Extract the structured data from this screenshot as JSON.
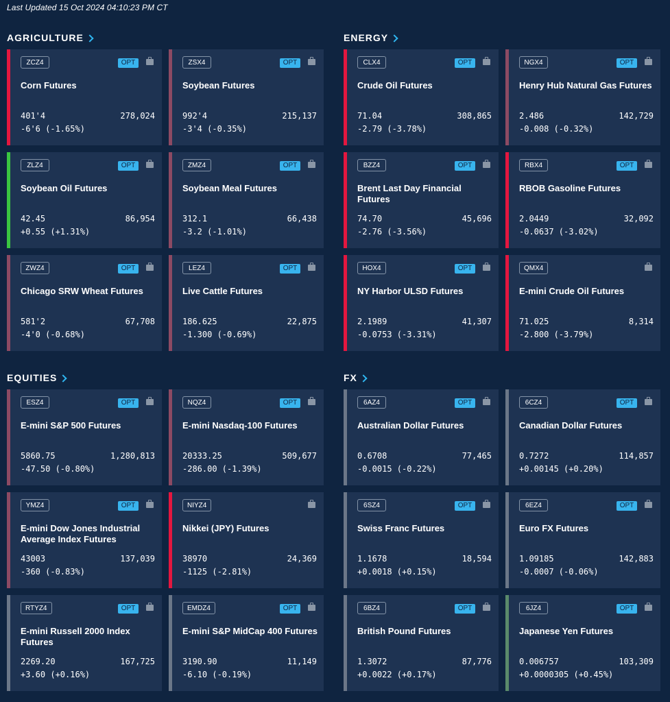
{
  "last_updated": "Last Updated 15 Oct 2024 04:10:23 PM CT",
  "opt_label": "OPT",
  "colors": {
    "background": "#0f2440",
    "card": "#1e3352",
    "negative": "#e3173f",
    "negative_muted": "#8c4a63",
    "positive": "#3ac541",
    "neutral": "#6b7788",
    "accent": "#38b4ee"
  },
  "sections": [
    {
      "id": "agriculture",
      "title": "AGRICULTURE",
      "cards": [
        {
          "code": "ZCZ4",
          "name": "Corn Futures",
          "price": "401'4",
          "volume": "278,024",
          "change": "-6'6 (-1.65%)",
          "trend": "neg",
          "opt": true
        },
        {
          "code": "ZSX4",
          "name": "Soybean Futures",
          "price": "992'4",
          "volume": "215,137",
          "change": "-3'4 (-0.35%)",
          "trend": "negm",
          "opt": true
        },
        {
          "code": "ZLZ4",
          "name": "Soybean Oil Futures",
          "price": "42.45",
          "volume": "86,954",
          "change": "+0.55 (+1.31%)",
          "trend": "pos",
          "opt": true
        },
        {
          "code": "ZMZ4",
          "name": "Soybean Meal Futures",
          "price": "312.1",
          "volume": "66,438",
          "change": "-3.2 (-1.01%)",
          "trend": "negm",
          "opt": true
        },
        {
          "code": "ZWZ4",
          "name": "Chicago SRW Wheat Futures",
          "price": "581'2",
          "volume": "67,708",
          "change": "-4'0 (-0.68%)",
          "trend": "negm",
          "opt": true
        },
        {
          "code": "LEZ4",
          "name": "Live Cattle Futures",
          "price": "186.625",
          "volume": "22,875",
          "change": "-1.300 (-0.69%)",
          "trend": "negm",
          "opt": true
        }
      ]
    },
    {
      "id": "energy",
      "title": "ENERGY",
      "cards": [
        {
          "code": "CLX4",
          "name": "Crude Oil Futures",
          "price": "71.04",
          "volume": "308,865",
          "change": "-2.79 (-3.78%)",
          "trend": "neg",
          "opt": true
        },
        {
          "code": "NGX4",
          "name": "Henry Hub Natural Gas Futures",
          "price": "2.486",
          "volume": "142,729",
          "change": "-0.008 (-0.32%)",
          "trend": "negm",
          "opt": true
        },
        {
          "code": "BZZ4",
          "name": "Brent Last Day Financial Futures",
          "price": "74.70",
          "volume": "45,696",
          "change": "-2.76 (-3.56%)",
          "trend": "neg",
          "opt": true
        },
        {
          "code": "RBX4",
          "name": "RBOB Gasoline Futures",
          "price": "2.0449",
          "volume": "32,092",
          "change": "-0.0637 (-3.02%)",
          "trend": "neg",
          "opt": true
        },
        {
          "code": "HOX4",
          "name": "NY Harbor ULSD Futures",
          "price": "2.1989",
          "volume": "41,307",
          "change": "-0.0753 (-3.31%)",
          "trend": "neg",
          "opt": true
        },
        {
          "code": "QMX4",
          "name": "E-mini Crude Oil Futures",
          "price": "71.025",
          "volume": "8,314",
          "change": "-2.800 (-3.79%)",
          "trend": "neg",
          "opt": false
        }
      ]
    },
    {
      "id": "equities",
      "title": "EQUITIES",
      "cards": [
        {
          "code": "ESZ4",
          "name": "E-mini S&P 500 Futures",
          "price": "5860.75",
          "volume": "1,280,813",
          "change": "-47.50 (-0.80%)",
          "trend": "negm",
          "opt": true
        },
        {
          "code": "NQZ4",
          "name": "E-mini Nasdaq-100 Futures",
          "price": "20333.25",
          "volume": "509,677",
          "change": "-286.00 (-1.39%)",
          "trend": "negm",
          "opt": true
        },
        {
          "code": "YMZ4",
          "name": "E-mini Dow Jones Industrial Average Index Futures",
          "price": "43003",
          "volume": "137,039",
          "change": "-360 (-0.83%)",
          "trend": "negm",
          "opt": true
        },
        {
          "code": "NIYZ4",
          "name": "Nikkei (JPY) Futures",
          "price": "38970",
          "volume": "24,369",
          "change": "-1125 (-2.81%)",
          "trend": "neg",
          "opt": false
        },
        {
          "code": "RTYZ4",
          "name": "E-mini  Russell 2000 Index Futures",
          "price": "2269.20",
          "volume": "167,725",
          "change": "+3.60 (+0.16%)",
          "trend": "neut",
          "opt": true
        },
        {
          "code": "EMDZ4",
          "name": "E-mini S&P MidCap 400 Futures",
          "price": "3190.90",
          "volume": "11,149",
          "change": "-6.10 (-0.19%)",
          "trend": "neut",
          "opt": true
        }
      ]
    },
    {
      "id": "fx",
      "title": "FX",
      "cards": [
        {
          "code": "6AZ4",
          "name": "Australian Dollar Futures",
          "price": "0.6708",
          "volume": "77,465",
          "change": "-0.0015 (-0.22%)",
          "trend": "neut",
          "opt": true
        },
        {
          "code": "6CZ4",
          "name": "Canadian Dollar Futures",
          "price": "0.7272",
          "volume": "114,857",
          "change": "+0.00145 (+0.20%)",
          "trend": "neut",
          "opt": true
        },
        {
          "code": "6SZ4",
          "name": "Swiss Franc Futures",
          "price": "1.1678",
          "volume": "18,594",
          "change": "+0.0018 (+0.15%)",
          "trend": "neut",
          "opt": true
        },
        {
          "code": "6EZ4",
          "name": "Euro FX Futures",
          "price": "1.09185",
          "volume": "142,883",
          "change": "-0.0007 (-0.06%)",
          "trend": "neut",
          "opt": true
        },
        {
          "code": "6BZ4",
          "name": "British Pound Futures",
          "price": "1.3072",
          "volume": "87,776",
          "change": "+0.0022 (+0.17%)",
          "trend": "neut",
          "opt": true
        },
        {
          "code": "6JZ4",
          "name": "Japanese Yen Futures",
          "price": "0.006757",
          "volume": "103,309",
          "change": "+0.0000305 (+0.45%)",
          "trend": "posm",
          "opt": true
        }
      ]
    }
  ]
}
